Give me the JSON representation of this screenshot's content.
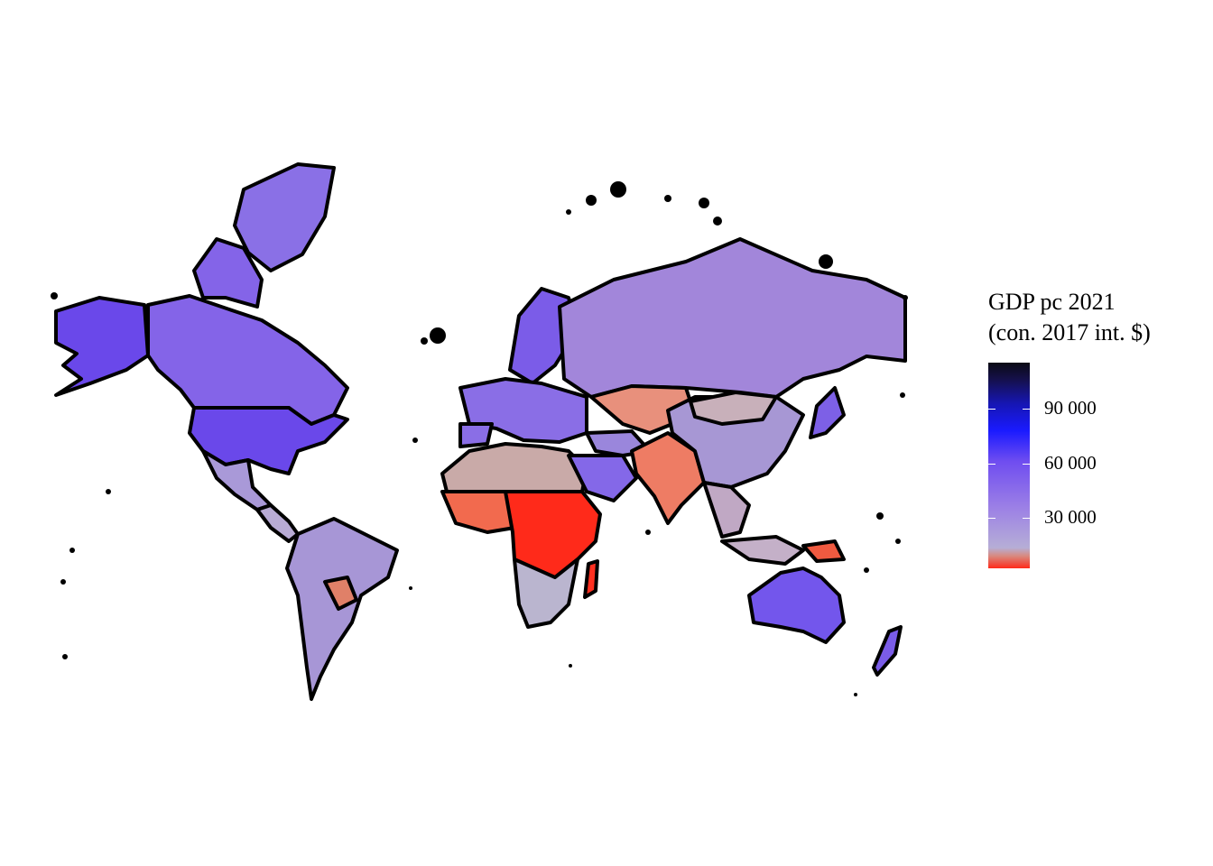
{
  "legend": {
    "title_line1": "GDP pc 2021",
    "title_line2": "(con. 2017 int. $)",
    "ticks": [
      {
        "value": 90000,
        "label": "90 000"
      },
      {
        "value": 60000,
        "label": "60 000"
      },
      {
        "value": 30000,
        "label": "30 000"
      }
    ],
    "colors": {
      "low": "#ff2a1a",
      "mid": "#9b7fe6",
      "high": "#0a0a14"
    }
  },
  "regions": [
    {
      "name": "alaska",
      "color": "#6a48ea"
    },
    {
      "name": "canada",
      "color": "#8464e8"
    },
    {
      "name": "greenland",
      "color": "#8a70e6"
    },
    {
      "name": "usa",
      "color": "#6a48ea"
    },
    {
      "name": "mexico",
      "color": "#a999d8"
    },
    {
      "name": "central-america",
      "color": "#b8abd4"
    },
    {
      "name": "south-america",
      "color": "#a796d6"
    },
    {
      "name": "bolivia",
      "color": "#e08068"
    },
    {
      "name": "europe",
      "color": "#8a6ee6"
    },
    {
      "name": "scandinavia",
      "color": "#7b5ce8"
    },
    {
      "name": "russia",
      "color": "#a286da"
    },
    {
      "name": "north-africa",
      "color": "#c9aaa8"
    },
    {
      "name": "west-africa",
      "color": "#f26a4e"
    },
    {
      "name": "central-africa",
      "color": "#ff2a1a"
    },
    {
      "name": "southern-africa",
      "color": "#bab5cf"
    },
    {
      "name": "madagascar",
      "color": "#ff3020"
    },
    {
      "name": "middle-east",
      "color": "#9a86dc"
    },
    {
      "name": "saudi",
      "color": "#8468e8"
    },
    {
      "name": "central-asia",
      "color": "#e8907c"
    },
    {
      "name": "india",
      "color": "#ee7c64"
    },
    {
      "name": "china",
      "color": "#a797d4"
    },
    {
      "name": "mongolia",
      "color": "#c8b0ba"
    },
    {
      "name": "southeast-asia",
      "color": "#c0a8c4"
    },
    {
      "name": "japan",
      "color": "#7d60e6"
    },
    {
      "name": "indonesia",
      "color": "#c4b0c8"
    },
    {
      "name": "papua",
      "color": "#f05a40"
    },
    {
      "name": "australia",
      "color": "#7356ec"
    },
    {
      "name": "new-zealand",
      "color": "#7a5ce8"
    }
  ]
}
